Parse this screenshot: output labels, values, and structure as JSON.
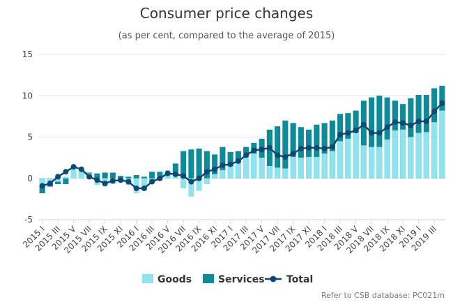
{
  "chart_data": {
    "type": "bar",
    "title": "Consumer price changes",
    "subtitle": "(as per cent, compared to the average of 2015)",
    "xlabel": "",
    "ylabel": "",
    "ylim": [
      -5,
      15
    ],
    "yticks": [
      "-5",
      "0",
      "5",
      "10",
      "15"
    ],
    "grid": true,
    "legend_position": "bottom-center",
    "categories": [
      "2015 I",
      "2015 II",
      "2015 III",
      "2015 IV",
      "2015 V",
      "2015 VI",
      "2015 VII",
      "2015 VIII",
      "2015 IX",
      "2015 X",
      "2015 XI",
      "2015 XII",
      "2016 I",
      "2016 II",
      "2016 III",
      "2016 IV",
      "2016 V",
      "2016 VI",
      "2016 VII",
      "2016 VIII",
      "2016 IX",
      "2016 X",
      "2016 XI",
      "2016 XII",
      "2017 I",
      "2017 II",
      "2017 III",
      "2017 IV",
      "2017 V",
      "2017 VI",
      "2017 VII",
      "2017 VIII",
      "2017 IX",
      "2017 X",
      "2017 XI",
      "2017 XII",
      "2018 I",
      "2018 II",
      "2018 III",
      "2018 IV",
      "2018 V",
      "2018 VI",
      "2018 VII",
      "2018 VIII",
      "2018 IX",
      "2018 X",
      "2018 XI",
      "2018 XII",
      "2019 I",
      "2019 II",
      "2019 III",
      "2019 IV"
    ],
    "shown_labels": [
      "2015 I",
      "2015 III",
      "2015 V",
      "2015 VII",
      "2015 IX",
      "2015 XI",
      "2016 I",
      "2016 III",
      "2016 V",
      "2016 VII",
      "2016 IX",
      "2016 XI",
      "2017 I",
      "2017 III",
      "2017 V",
      "2017 VII",
      "2017 IX",
      "2017 XI",
      "2018 I",
      "2018 III",
      "2018 V",
      "2018 VII",
      "2018 IX",
      "2018 XI",
      "2019 I",
      "2019 III"
    ],
    "series": [
      {
        "name": "Goods",
        "type": "bar",
        "color": "#8fe3ef",
        "values": [
          -0.8,
          -0.7,
          -0.4,
          0.2,
          1.1,
          1.0,
          0.6,
          -0.8,
          -1.0,
          -0.7,
          -0.5,
          -0.8,
          -1.8,
          -1.5,
          -0.6,
          0.3,
          1.0,
          0.3,
          -1.2,
          -2.2,
          -1.5,
          -0.7,
          0.5,
          1.0,
          1.5,
          2.0,
          3.0,
          3.0,
          2.5,
          1.5,
          1.3,
          1.2,
          2.6,
          2.5,
          2.6,
          2.6,
          3.0,
          3.3,
          4.5,
          4.8,
          5.5,
          4.0,
          3.8,
          3.8,
          4.7,
          5.8,
          5.9,
          5.0,
          5.5,
          5.6,
          6.8,
          8.2
        ]
      },
      {
        "name": "Services",
        "type": "bar",
        "color": "#0f8a98",
        "values": [
          -1.8,
          -1.0,
          -0.7,
          -0.7,
          0.6,
          0.9,
          0.7,
          0.6,
          0.7,
          0.7,
          0.3,
          0.2,
          0.4,
          0.2,
          0.8,
          0.8,
          0.6,
          1.8,
          3.3,
          3.5,
          3.6,
          3.3,
          2.9,
          3.8,
          3.2,
          3.3,
          3.8,
          4.3,
          4.8,
          5.9,
          6.3,
          7.0,
          6.7,
          6.2,
          5.9,
          6.5,
          6.7,
          7.0,
          7.8,
          7.9,
          8.2,
          9.4,
          9.8,
          10.0,
          9.8,
          9.4,
          9.0,
          9.7,
          10.1,
          10.1,
          10.9,
          11.2
        ]
      },
      {
        "name": "Total",
        "type": "line",
        "color": "#0d4a73",
        "values": [
          -0.9,
          -0.6,
          0.2,
          0.8,
          1.4,
          1.1,
          0.2,
          -0.2,
          -0.6,
          -0.3,
          -0.2,
          -0.4,
          -1.2,
          -1.2,
          -0.4,
          0.0,
          0.6,
          0.5,
          0.3,
          -0.4,
          0.0,
          0.8,
          1.1,
          1.6,
          1.7,
          2.1,
          2.8,
          3.4,
          3.5,
          3.7,
          2.8,
          2.6,
          3.0,
          3.6,
          3.7,
          3.7,
          3.6,
          3.8,
          5.3,
          5.5,
          5.8,
          6.5,
          5.5,
          5.5,
          6.2,
          6.8,
          6.7,
          6.4,
          6.9,
          6.9,
          8.1,
          9.1
        ]
      }
    ]
  },
  "credits": "Refer to CSB database: PC021m"
}
